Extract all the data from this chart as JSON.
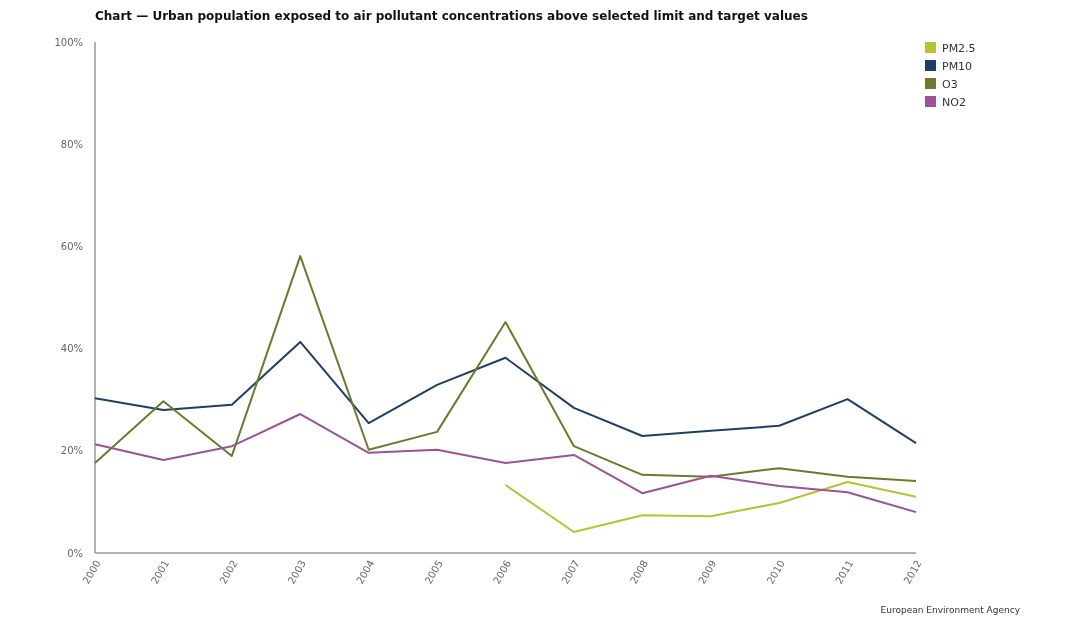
{
  "chart_data": {
    "type": "line",
    "title": "Chart — Urban population exposed to air pollutant concentrations above selected limit and target values",
    "categories": [
      "2000",
      "2001",
      "2002",
      "2003",
      "2004",
      "2005",
      "2006",
      "2007",
      "2008",
      "2009",
      "2010",
      "2011",
      "2012"
    ],
    "series": [
      {
        "name": "PM2.5",
        "color": "#b5c334",
        "values": [
          null,
          null,
          null,
          null,
          null,
          null,
          13.3,
          4.1,
          7.4,
          7.2,
          9.8,
          13.9,
          11.0
        ]
      },
      {
        "name": "PM10",
        "color": "#1f3e66",
        "values": [
          30.3,
          28.0,
          29.0,
          41.3,
          25.4,
          32.9,
          38.2,
          28.4,
          22.9,
          23.9,
          24.9,
          30.1,
          21.5
        ]
      },
      {
        "name": "O3",
        "color": "#6b7a2c",
        "values": [
          17.6,
          29.7,
          19.0,
          58.1,
          20.2,
          23.7,
          45.2,
          20.9,
          15.3,
          14.9,
          16.6,
          14.9,
          14.1
        ]
      },
      {
        "name": "NO2",
        "color": "#9b5396",
        "values": [
          21.3,
          18.2,
          20.9,
          27.2,
          19.6,
          20.2,
          17.6,
          19.2,
          11.7,
          15.1,
          13.1,
          11.9,
          8.0
        ]
      }
    ],
    "ylim": [
      0,
      100
    ],
    "yticks": [
      {
        "value": 0,
        "label": "0%"
      },
      {
        "value": 20,
        "label": "20%"
      },
      {
        "value": 40,
        "label": "40%"
      },
      {
        "value": 60,
        "label": "60%"
      },
      {
        "value": 80,
        "label": "80%"
      },
      {
        "value": 100,
        "label": "100%"
      }
    ],
    "legend": "top right",
    "marker": "none",
    "line_style": "solid",
    "annotations": [
      "European Environment Agency"
    ]
  }
}
